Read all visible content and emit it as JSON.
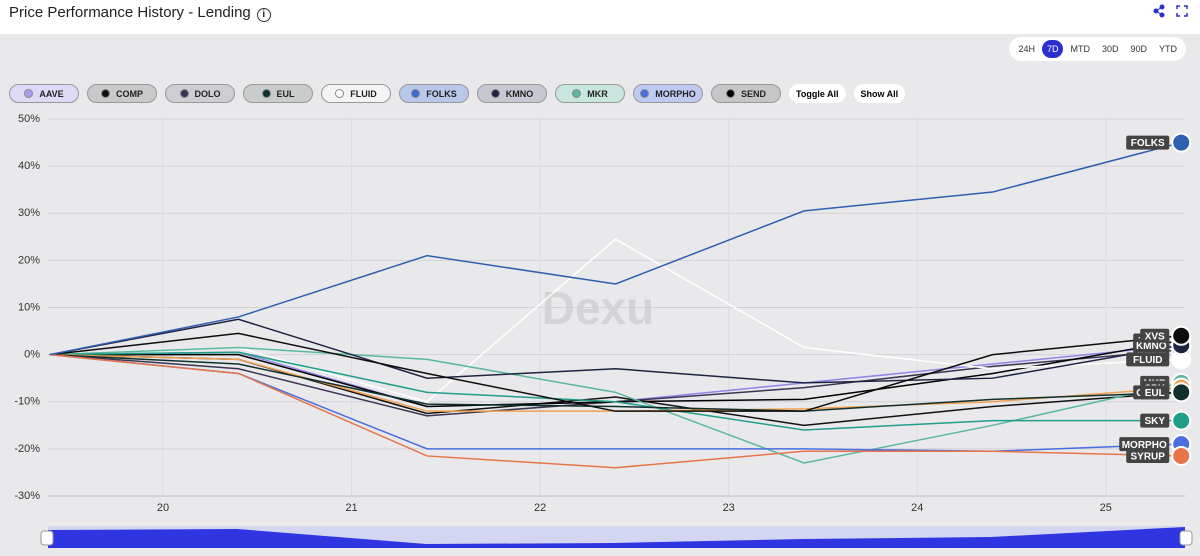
{
  "header": {
    "title": "Price Performance History - Lending"
  },
  "ranges": {
    "options": [
      "24H",
      "7D",
      "MTD",
      "30D",
      "90D",
      "YTD"
    ],
    "active": 1
  },
  "legend_items": [
    {
      "name": "AAVE",
      "color": "#a79cf2",
      "bg": "#dcdaf4"
    },
    {
      "name": "COMP",
      "color": "#111111",
      "bg": "#c9c9cc"
    },
    {
      "name": "DOLO",
      "color": "#3a3552",
      "bg": "#cfcdd3"
    },
    {
      "name": "EUL",
      "color": "#10302e",
      "bg": "#c8cccb"
    },
    {
      "name": "FLUID",
      "color": "#ffffff",
      "bg": "#f4f4f6"
    },
    {
      "name": "FOLKS",
      "color": "#3b6bd6",
      "bg": "#b9c8ea"
    },
    {
      "name": "KMNO",
      "color": "#1e2440",
      "bg": "#c6c8d1"
    },
    {
      "name": "MKR",
      "color": "#5ab8a0",
      "bg": "#c8e6dd"
    },
    {
      "name": "MORPHO",
      "color": "#4a6ee0",
      "bg": "#bfcaf2"
    },
    {
      "name": "SEND",
      "color": "#000000",
      "bg": "#c6c6c8"
    }
  ],
  "buttons": [
    "Toggle All",
    "Show All"
  ],
  "watermark": "Dexu",
  "chart_data": {
    "type": "line",
    "x": [
      19.4,
      20.4,
      21.4,
      22.4,
      23.4,
      24.4,
      25.4
    ],
    "xlim": [
      19.39,
      25.42
    ],
    "xticks": [
      20,
      21,
      22,
      23,
      24,
      25
    ],
    "ylim": [
      -30,
      50
    ],
    "yticks": [
      {
        "value": -30,
        "label": "-30%"
      },
      {
        "value": -20,
        "label": "-20%"
      },
      {
        "value": -10,
        "label": "-10%"
      },
      {
        "value": 0,
        "label": "0%"
      },
      {
        "value": 10,
        "label": "10%"
      },
      {
        "value": 20,
        "label": "20%"
      },
      {
        "value": 30,
        "label": "30%"
      },
      {
        "value": 40,
        "label": "40%"
      },
      {
        "value": 50,
        "label": "50%"
      }
    ],
    "grid": true,
    "series": [
      {
        "name": "AAVE",
        "color": "#8f86e8",
        "values": [
          0,
          0.5,
          -11,
          -10,
          -6,
          -2,
          2
        ]
      },
      {
        "name": "COMP",
        "color": "#111111",
        "values": [
          0,
          -1,
          -12.5,
          -9,
          -15,
          -11,
          -8
        ]
      },
      {
        "name": "DOLO",
        "color": "#3a3552",
        "values": [
          0,
          -3,
          -13,
          -10,
          -7,
          -2.5,
          1
        ]
      },
      {
        "name": "SEND",
        "color": "#000000",
        "values": [
          0,
          0,
          -11,
          -10,
          -9.5,
          -4,
          3
        ]
      },
      {
        "name": "FLUID",
        "color": "#ffffff",
        "values": [
          0,
          1.5,
          -10,
          24.5,
          1.5,
          -3,
          -1
        ]
      },
      {
        "name": "MKR",
        "color": "#5ab8a0",
        "values": [
          0,
          1.5,
          -1,
          -8,
          -23,
          -15,
          -6
        ]
      },
      {
        "name": "SKY",
        "color": "#1f9e8a",
        "values": [
          0,
          0.5,
          -8,
          -10,
          -16,
          -14,
          -14
        ]
      },
      {
        "name": "SPK",
        "color": "#f0a050",
        "values": [
          0,
          -1,
          -12,
          -12,
          -11.5,
          -10,
          -7
        ]
      },
      {
        "name": "EUL",
        "color": "#10302e",
        "values": [
          0,
          -2,
          -10.5,
          -11,
          -12,
          -9.5,
          -8
        ]
      },
      {
        "name": "KMNO",
        "color": "#1e2440",
        "values": [
          0,
          7.5,
          -5,
          -3,
          -6,
          -5,
          2
        ]
      },
      {
        "name": "XVS",
        "color": "#0d0d0d",
        "values": [
          0,
          4.5,
          -4,
          -12,
          -12,
          0,
          4
        ]
      },
      {
        "name": "MORPHO",
        "color": "#4a6ee0",
        "values": [
          0,
          -4,
          -20,
          -20,
          -20,
          -20.5,
          -19
        ]
      },
      {
        "name": "SYRUP",
        "color": "#e8744a",
        "values": [
          0,
          -4,
          -21.5,
          -24,
          -20.5,
          -20.5,
          -21.5
        ]
      },
      {
        "name": "FOLKS",
        "color": "#2f5fb0",
        "values": [
          0,
          8,
          21,
          15,
          30.5,
          34.5,
          45
        ]
      }
    ]
  }
}
